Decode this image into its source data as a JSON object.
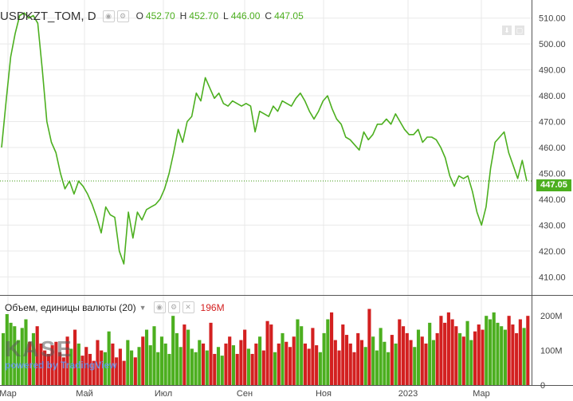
{
  "header": {
    "symbol": "USDKZT_TOM, D",
    "ohlc": [
      {
        "key": "O",
        "value": "452.70"
      },
      {
        "key": "H",
        "value": "452.70"
      },
      {
        "key": "L",
        "value": "446.00"
      },
      {
        "key": "C",
        "value": "447.05"
      }
    ]
  },
  "volume_header": {
    "label": "Объем, единицы валюты (20)",
    "value": "196M"
  },
  "watermark": {
    "logo": "KASE",
    "powered": "powered by TradingView"
  },
  "last_price_label": "447.05",
  "colors": {
    "line": "#4caf1f",
    "up": "#4caf1f",
    "down": "#d32020",
    "grid": "#e9e9e9",
    "dotted": "#3c9a12"
  },
  "chart_data": {
    "type": "line",
    "price_axis": {
      "ticks": [
        410,
        420,
        430,
        440,
        450,
        460,
        470,
        480,
        490,
        500,
        510
      ],
      "range": [
        403,
        517
      ]
    },
    "volume_axis": {
      "ticks": [
        {
          "value": 0,
          "label": "0"
        },
        {
          "value": 100,
          "label": "100M"
        },
        {
          "value": 200,
          "label": "200M"
        }
      ],
      "range": [
        0,
        235
      ]
    },
    "time_labels": [
      "Мар",
      "Май",
      "Июл",
      "Сен",
      "Ноя",
      "2023",
      "Мар"
    ],
    "last_price": 447.05,
    "series": [
      {
        "price": [
          460,
          478,
          495,
          504,
          511,
          512,
          510,
          511,
          508,
          490,
          470,
          462,
          458,
          450,
          444,
          447,
          442,
          447,
          445,
          442,
          438,
          433,
          427,
          437,
          434,
          433,
          420,
          415,
          435,
          425,
          435,
          432,
          436,
          437,
          438,
          440,
          444,
          450,
          458,
          467,
          462,
          470,
          472,
          481,
          478,
          487,
          483,
          479,
          481,
          477,
          476,
          478,
          477,
          476,
          477,
          476,
          466,
          474,
          473,
          472,
          476,
          474,
          478,
          477,
          476,
          479,
          481,
          478,
          474,
          471,
          474,
          478,
          480,
          475,
          471,
          469,
          464,
          463,
          461,
          459,
          466,
          463,
          465,
          469,
          469,
          471,
          469,
          473,
          470,
          467,
          465,
          465,
          467,
          462,
          464,
          464,
          463,
          460,
          456,
          449,
          445,
          449,
          448,
          449,
          443,
          435,
          430,
          437,
          452,
          462,
          464,
          466,
          458,
          453,
          448,
          455,
          447
        ]
      },
      {
        "volume": [
          150,
          205,
          180,
          170,
          130,
          165,
          190,
          125,
          150,
          170,
          120,
          100,
          90,
          115,
          125,
          95,
          80,
          140,
          105,
          160,
          120,
          85,
          110,
          90,
          70,
          130,
          100,
          95,
          155,
          120,
          80,
          105,
          70,
          130,
          100,
          80,
          110,
          140,
          160,
          115,
          170,
          95,
          140,
          120,
          90,
          200,
          150,
          110,
          175,
          160,
          105,
          95,
          130,
          120,
          100,
          180,
          90,
          110,
          85,
          120,
          140,
          115,
          90,
          130,
          160,
          105,
          90,
          120,
          140,
          100,
          185,
          175,
          95,
          120,
          150,
          125,
          110,
          140,
          190,
          170,
          120,
          105,
          165,
          115,
          95,
          150,
          190,
          210,
          130,
          100,
          175,
          145,
          120,
          95,
          150,
          130,
          110,
          220,
          140,
          100,
          165,
          125,
          95,
          145,
          120,
          190,
          170,
          150,
          130,
          110,
          160,
          140,
          120,
          180,
          130,
          150,
          200,
          180,
          210,
          190,
          170,
          150,
          140,
          185,
          130,
          155,
          175,
          160,
          200,
          190,
          210,
          180,
          170,
          160,
          200,
          175,
          150,
          190,
          165,
          200
        ]
      }
    ]
  }
}
